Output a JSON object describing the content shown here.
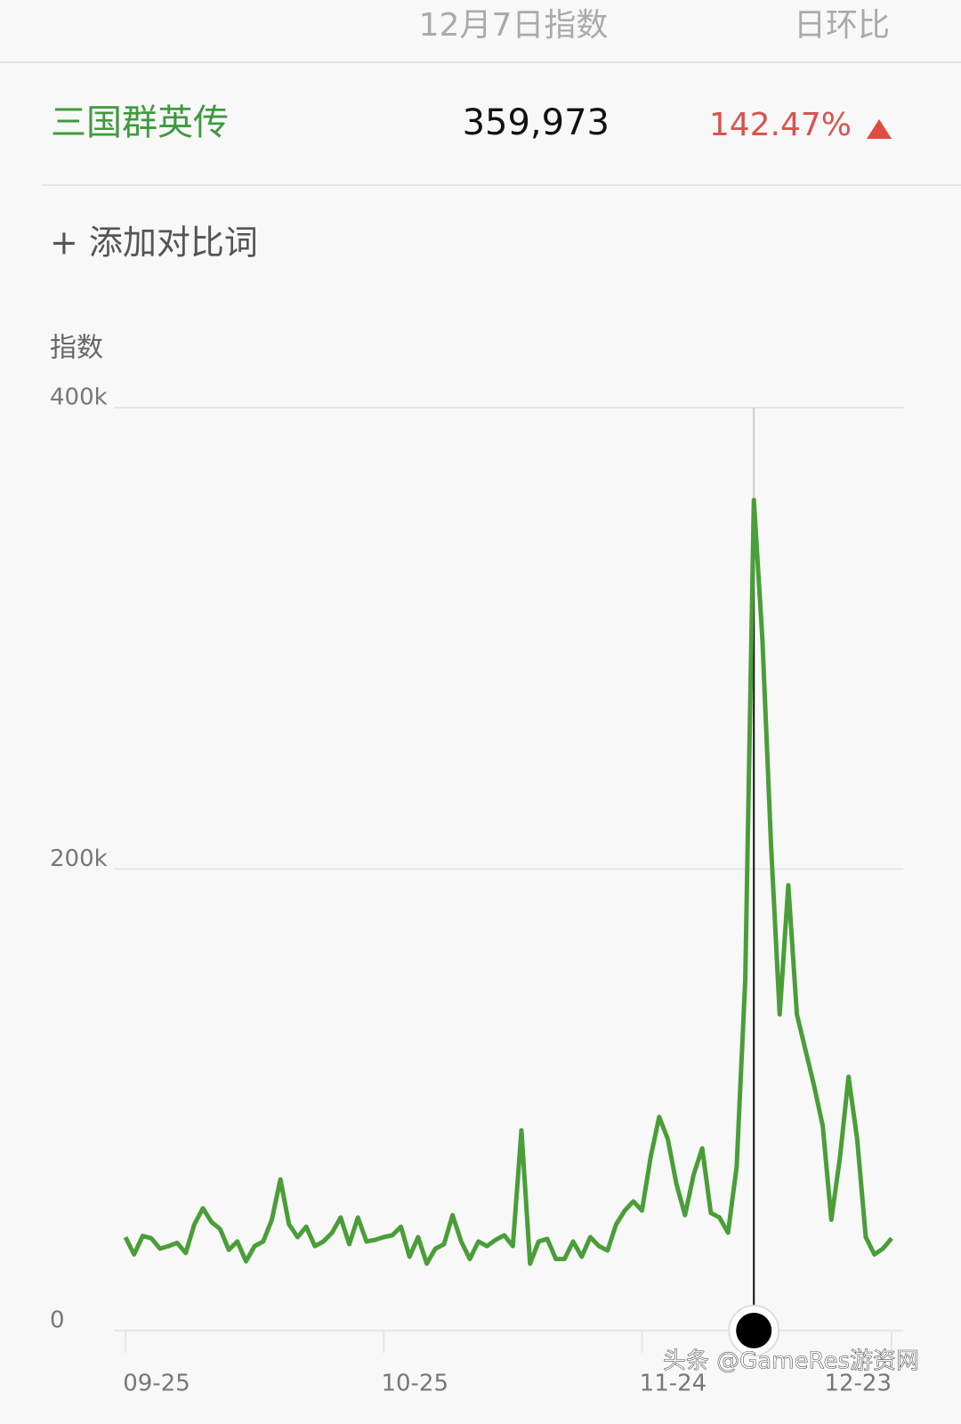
{
  "header": {
    "date_label": "12月7日指数",
    "change_label": "日环比"
  },
  "keyword": {
    "name": "三国群英传",
    "value": "359,973",
    "change": "142.47%"
  },
  "add_compare": "+ 添加对比词",
  "watermark": "头条 @GameRes游资网",
  "chart_data": {
    "type": "line",
    "y_label": "指数",
    "categories": [
      "09-25",
      null,
      null,
      null,
      null,
      null,
      null,
      null,
      null,
      null,
      null,
      null,
      null,
      null,
      null,
      null,
      null,
      null,
      null,
      null,
      null,
      null,
      null,
      null,
      null,
      null,
      null,
      null,
      null,
      null,
      "10-25",
      null,
      null,
      null,
      null,
      null,
      null,
      null,
      null,
      null,
      null,
      null,
      null,
      null,
      null,
      null,
      null,
      null,
      null,
      null,
      null,
      null,
      null,
      null,
      null,
      null,
      null,
      null,
      null,
      null,
      "11-24",
      null,
      null,
      null,
      null,
      null,
      null,
      null,
      null,
      null,
      null,
      null,
      null,
      null,
      null,
      null,
      null,
      null,
      null,
      null,
      null,
      null,
      null,
      null,
      null,
      null,
      null,
      null,
      null,
      "12-23"
    ],
    "series": [
      {
        "color": "#4a9e38",
        "values": [
          40500,
          33000,
          41000,
          40000,
          35500,
          36600,
          38000,
          33600,
          46000,
          53000,
          47000,
          44000,
          35000,
          38600,
          30000,
          36600,
          38600,
          48000,
          65500,
          46000,
          40500,
          45000,
          36600,
          38600,
          42400,
          49000,
          37400,
          49000,
          38600,
          39300,
          40500,
          41300,
          45000,
          32000,
          40500,
          29000,
          35500,
          37400,
          50000,
          38600,
          31000,
          38600,
          36600,
          39300,
          41300,
          36600,
          86800,
          29000,
          38600,
          39700,
          31000,
          31000,
          38600,
          32000,
          40500,
          36600,
          34700,
          46000,
          52000,
          56000,
          52000,
          75000,
          92600,
          83000,
          63600,
          50000,
          67500,
          79000,
          51000,
          49000,
          42400,
          71000,
          152000,
          359973,
          299000,
          210000,
          137000,
          193000,
          137000,
          121500,
          106000,
          88700,
          48000,
          75000,
          110000,
          83000,
          40500,
          33000,
          35500,
          40000
        ]
      }
    ],
    "ylim": [
      0,
      400000
    ],
    "yticks": [
      {
        "value": 0,
        "label": "0"
      },
      {
        "value": 200000,
        "label": "200k"
      },
      {
        "value": 400000,
        "label": "400k"
      }
    ],
    "grid": true
  }
}
